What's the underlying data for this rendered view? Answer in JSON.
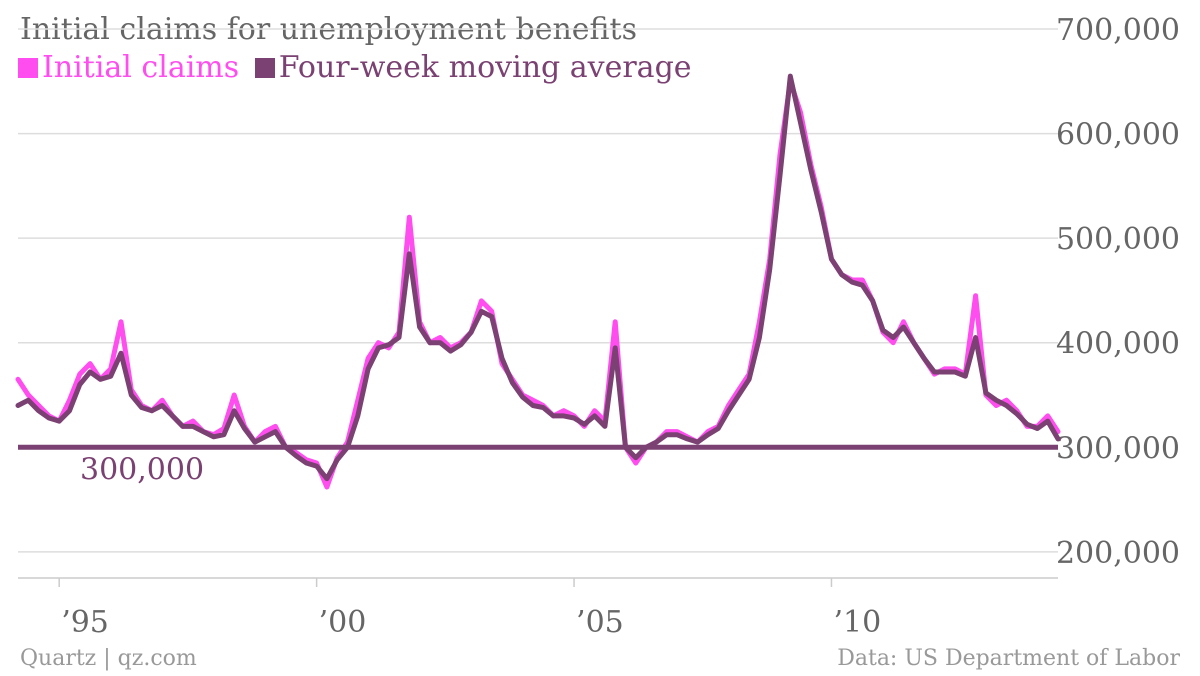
{
  "chart_data": {
    "type": "line",
    "title": "Initial claims for unemployment benefits",
    "source": "Data: US Department of Labor",
    "credit": "Quartz | qz.com",
    "xlim": [
      1994.2,
      2014.4
    ],
    "ylim": [
      175000,
      700000
    ],
    "x_ticks": [
      {
        "value": 1995,
        "label": "’95"
      },
      {
        "value": 2000,
        "label": "’00"
      },
      {
        "value": 2005,
        "label": "’05"
      },
      {
        "value": 2010,
        "label": "’10"
      }
    ],
    "y_ticks": [
      {
        "value": 200000,
        "label": "200,000"
      },
      {
        "value": 300000,
        "label": "300,000"
      },
      {
        "value": 400000,
        "label": "400,000"
      },
      {
        "value": 500000,
        "label": "500,000"
      },
      {
        "value": 600000,
        "label": "600,000"
      },
      {
        "value": 700000,
        "label": "700,000"
      }
    ],
    "grid": true,
    "legend_position": "top-left",
    "reference_line": {
      "value": 300000,
      "label": "300,000"
    },
    "series": [
      {
        "name": "Initial claims",
        "color": "#ff4df0",
        "x": [
          1994.2,
          1994.4,
          1994.6,
          1994.8,
          1995.0,
          1995.2,
          1995.4,
          1995.6,
          1995.8,
          1996.0,
          1996.2,
          1996.4,
          1996.6,
          1996.8,
          1997.0,
          1997.2,
          1997.4,
          1997.6,
          1997.8,
          1998.0,
          1998.2,
          1998.4,
          1998.6,
          1998.8,
          1999.0,
          1999.2,
          1999.4,
          1999.6,
          1999.8,
          2000.0,
          2000.2,
          2000.4,
          2000.6,
          2000.8,
          2001.0,
          2001.2,
          2001.4,
          2001.6,
          2001.8,
          2002.0,
          2002.2,
          2002.4,
          2002.6,
          2002.8,
          2003.0,
          2003.2,
          2003.4,
          2003.6,
          2003.8,
          2004.0,
          2004.2,
          2004.4,
          2004.6,
          2004.8,
          2005.0,
          2005.2,
          2005.4,
          2005.6,
          2005.8,
          2006.0,
          2006.2,
          2006.4,
          2006.6,
          2006.8,
          2007.0,
          2007.2,
          2007.4,
          2007.6,
          2007.8,
          2008.0,
          2008.2,
          2008.4,
          2008.6,
          2008.8,
          2009.0,
          2009.2,
          2009.4,
          2009.6,
          2009.8,
          2010.0,
          2010.2,
          2010.4,
          2010.6,
          2010.8,
          2011.0,
          2011.2,
          2011.4,
          2011.6,
          2011.8,
          2012.0,
          2012.2,
          2012.4,
          2012.6,
          2012.8,
          2013.0,
          2013.2,
          2013.4,
          2013.6,
          2013.8,
          2014.0,
          2014.2,
          2014.4
        ],
        "values": [
          365000,
          350000,
          340000,
          330000,
          325000,
          345000,
          370000,
          380000,
          365000,
          375000,
          420000,
          355000,
          340000,
          335000,
          345000,
          330000,
          320000,
          325000,
          315000,
          312000,
          318000,
          350000,
          320000,
          305000,
          315000,
          320000,
          300000,
          295000,
          288000,
          285000,
          262000,
          290000,
          305000,
          345000,
          385000,
          400000,
          395000,
          410000,
          520000,
          420000,
          400000,
          405000,
          395000,
          400000,
          410000,
          440000,
          430000,
          380000,
          365000,
          350000,
          345000,
          340000,
          330000,
          335000,
          330000,
          320000,
          335000,
          325000,
          420000,
          300000,
          285000,
          300000,
          305000,
          315000,
          315000,
          310000,
          305000,
          315000,
          320000,
          340000,
          355000,
          370000,
          420000,
          480000,
          580000,
          650000,
          620000,
          570000,
          530000,
          480000,
          465000,
          460000,
          460000,
          440000,
          410000,
          400000,
          420000,
          400000,
          385000,
          370000,
          375000,
          375000,
          370000,
          445000,
          350000,
          340000,
          345000,
          335000,
          320000,
          320000,
          330000,
          315000
        ]
      },
      {
        "name": "Four-week moving average",
        "color": "#7a4172",
        "x": [
          1994.2,
          1994.4,
          1994.6,
          1994.8,
          1995.0,
          1995.2,
          1995.4,
          1995.6,
          1995.8,
          1996.0,
          1996.2,
          1996.4,
          1996.6,
          1996.8,
          1997.0,
          1997.2,
          1997.4,
          1997.6,
          1997.8,
          1998.0,
          1998.2,
          1998.4,
          1998.6,
          1998.8,
          1999.0,
          1999.2,
          1999.4,
          1999.6,
          1999.8,
          2000.0,
          2000.2,
          2000.4,
          2000.6,
          2000.8,
          2001.0,
          2001.2,
          2001.4,
          2001.6,
          2001.8,
          2002.0,
          2002.2,
          2002.4,
          2002.6,
          2002.8,
          2003.0,
          2003.2,
          2003.4,
          2003.6,
          2003.8,
          2004.0,
          2004.2,
          2004.4,
          2004.6,
          2004.8,
          2005.0,
          2005.2,
          2005.4,
          2005.6,
          2005.8,
          2006.0,
          2006.2,
          2006.4,
          2006.6,
          2006.8,
          2007.0,
          2007.2,
          2007.4,
          2007.6,
          2007.8,
          2008.0,
          2008.2,
          2008.4,
          2008.6,
          2008.8,
          2009.0,
          2009.2,
          2009.4,
          2009.6,
          2009.8,
          2010.0,
          2010.2,
          2010.4,
          2010.6,
          2010.8,
          2011.0,
          2011.2,
          2011.4,
          2011.6,
          2011.8,
          2012.0,
          2012.2,
          2012.4,
          2012.6,
          2012.8,
          2013.0,
          2013.2,
          2013.4,
          2013.6,
          2013.8,
          2014.0,
          2014.2,
          2014.4
        ],
        "values": [
          340000,
          345000,
          335000,
          328000,
          325000,
          335000,
          360000,
          372000,
          365000,
          368000,
          390000,
          350000,
          338000,
          335000,
          340000,
          330000,
          320000,
          320000,
          315000,
          310000,
          312000,
          335000,
          318000,
          305000,
          310000,
          315000,
          300000,
          292000,
          285000,
          282000,
          270000,
          288000,
          300000,
          330000,
          375000,
          395000,
          398000,
          405000,
          485000,
          415000,
          400000,
          400000,
          392000,
          398000,
          410000,
          430000,
          425000,
          385000,
          362000,
          348000,
          340000,
          338000,
          330000,
          330000,
          328000,
          322000,
          330000,
          320000,
          395000,
          300000,
          290000,
          300000,
          305000,
          312000,
          312000,
          308000,
          305000,
          312000,
          318000,
          335000,
          350000,
          365000,
          405000,
          470000,
          560000,
          655000,
          610000,
          565000,
          525000,
          480000,
          465000,
          458000,
          455000,
          440000,
          412000,
          405000,
          415000,
          400000,
          385000,
          372000,
          372000,
          372000,
          368000,
          405000,
          352000,
          345000,
          340000,
          332000,
          322000,
          318000,
          325000,
          308000
        ]
      }
    ]
  }
}
